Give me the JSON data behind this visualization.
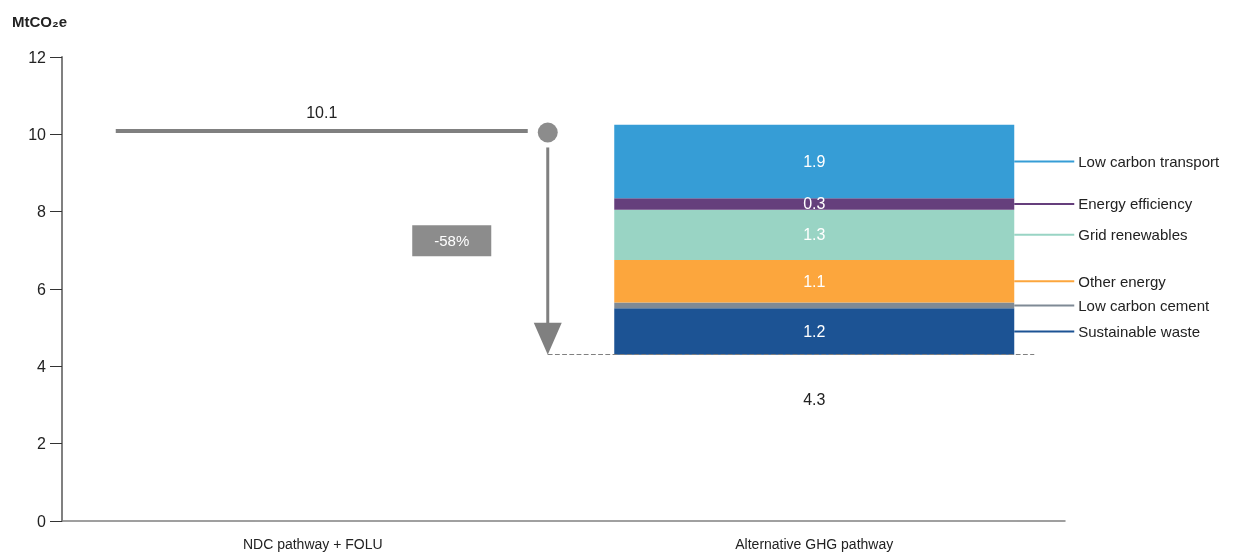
{
  "chart_data": {
    "type": "bar",
    "ylabel": "MtCO₂e",
    "categories": [
      "NDC pathway + FOLU",
      "Alternative GHG pathway"
    ],
    "series": [
      {
        "name": "Sustainable waste",
        "color": "#1c5394",
        "base": [
          null,
          4.3
        ],
        "values": [
          null,
          1.2
        ],
        "value_labels": [
          null,
          "1.2"
        ]
      },
      {
        "name": "Low carbon cement",
        "color": "#7f8a95",
        "base": [
          null,
          5.5
        ],
        "values": [
          null,
          0.15
        ],
        "value_labels": [
          null,
          null
        ]
      },
      {
        "name": "Other energy",
        "color": "#fca63d",
        "base": [
          null,
          5.65
        ],
        "values": [
          null,
          1.1
        ],
        "value_labels": [
          null,
          "1.1"
        ]
      },
      {
        "name": "Grid renewables",
        "color": "#99d4c4",
        "base": [
          null,
          6.75
        ],
        "values": [
          null,
          1.3
        ],
        "value_labels": [
          null,
          "1.3"
        ]
      },
      {
        "name": "Energy efficiency",
        "color": "#653f7c",
        "base": [
          null,
          8.05
        ],
        "values": [
          null,
          0.3
        ],
        "value_labels": [
          null,
          "0.3"
        ]
      },
      {
        "name": "Low carbon transport",
        "color": "#369dd6",
        "base": [
          null,
          8.35
        ],
        "values": [
          null,
          1.9
        ],
        "value_labels": [
          null,
          "1.9"
        ]
      }
    ],
    "ylim": [
      0,
      12
    ],
    "yticks": [
      0,
      2,
      4,
      6,
      8,
      10,
      12
    ],
    "grid": false,
    "legend": "right",
    "ref_lines": [
      {
        "axis": "y",
        "value": 10.1,
        "label": "10.1",
        "color": "#808080",
        "line_style": "solid"
      },
      {
        "axis": "y",
        "value": 4.3,
        "label": "4.3",
        "color": "#808080",
        "line_style": "dashed"
      }
    ],
    "annotations": [
      "-58%"
    ]
  }
}
